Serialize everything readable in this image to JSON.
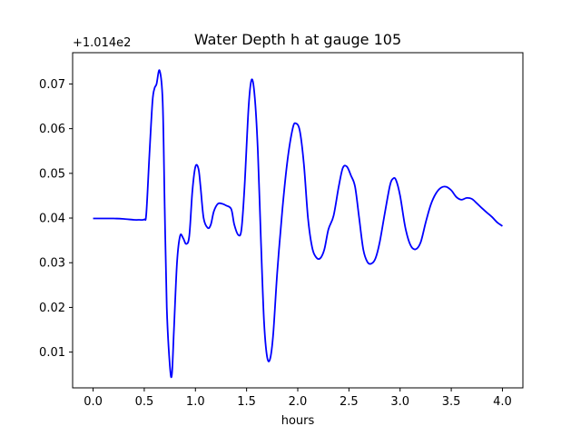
{
  "chart_data": {
    "type": "line",
    "title": "Water Depth h at gauge 105",
    "xlabel": "hours",
    "ylabel": "",
    "offset_label": "+1.014e2",
    "xlim": [
      -0.2,
      4.2
    ],
    "ylim": [
      0.002,
      0.077
    ],
    "xticks": [
      0.0,
      0.5,
      1.0,
      1.5,
      2.0,
      2.5,
      3.0,
      3.5,
      4.0
    ],
    "xtick_labels": [
      "0.0",
      "0.5",
      "1.0",
      "1.5",
      "2.0",
      "2.5",
      "3.0",
      "3.5",
      "4.0"
    ],
    "yticks": [
      0.01,
      0.02,
      0.03,
      0.04,
      0.05,
      0.06,
      0.07
    ],
    "ytick_labels": [
      "0.01",
      "0.02",
      "0.03",
      "0.04",
      "0.05",
      "0.06",
      "0.07"
    ],
    "grid": false,
    "color": "#0000ff",
    "series": [
      {
        "x": [
          0.0,
          0.1,
          0.2,
          0.3,
          0.4,
          0.45,
          0.5,
          0.52,
          0.55,
          0.58,
          0.6,
          0.62,
          0.65,
          0.68,
          0.7,
          0.72,
          0.75,
          0.77,
          0.79,
          0.82,
          0.85,
          0.88,
          0.91,
          0.94,
          0.97,
          1.0,
          1.03,
          1.05,
          1.08,
          1.12,
          1.15,
          1.18,
          1.22,
          1.26,
          1.3,
          1.35,
          1.38,
          1.42,
          1.45,
          1.48,
          1.52,
          1.55,
          1.58,
          1.61,
          1.64,
          1.67,
          1.7,
          1.73,
          1.76,
          1.8,
          1.85,
          1.9,
          1.95,
          1.98,
          2.02,
          2.06,
          2.1,
          2.14,
          2.18,
          2.22,
          2.26,
          2.3,
          2.35,
          2.4,
          2.44,
          2.48,
          2.52,
          2.56,
          2.6,
          2.64,
          2.68,
          2.72,
          2.76,
          2.8,
          2.85,
          2.9,
          2.93,
          2.96,
          3.0,
          3.05,
          3.1,
          3.15,
          3.2,
          3.25,
          3.3,
          3.35,
          3.4,
          3.45,
          3.5,
          3.55,
          3.6,
          3.65,
          3.7,
          3.75,
          3.8,
          3.85,
          3.9,
          3.95,
          4.0
        ],
        "values": [
          0.0399,
          0.0399,
          0.0399,
          0.0398,
          0.0396,
          0.0396,
          0.0397,
          0.041,
          0.054,
          0.066,
          0.069,
          0.07,
          0.073,
          0.066,
          0.042,
          0.02,
          0.007,
          0.005,
          0.015,
          0.03,
          0.036,
          0.0355,
          0.0342,
          0.036,
          0.046,
          0.0515,
          0.051,
          0.047,
          0.04,
          0.0378,
          0.0385,
          0.0415,
          0.0432,
          0.0432,
          0.0428,
          0.042,
          0.0385,
          0.0362,
          0.0375,
          0.047,
          0.065,
          0.071,
          0.067,
          0.055,
          0.035,
          0.017,
          0.009,
          0.0085,
          0.014,
          0.028,
          0.042,
          0.053,
          0.06,
          0.0612,
          0.0595,
          0.052,
          0.04,
          0.0335,
          0.0312,
          0.031,
          0.033,
          0.0375,
          0.0405,
          0.047,
          0.0512,
          0.0515,
          0.0495,
          0.047,
          0.04,
          0.033,
          0.0302,
          0.0298,
          0.031,
          0.0345,
          0.041,
          0.0472,
          0.0488,
          0.0485,
          0.045,
          0.038,
          0.034,
          0.033,
          0.0345,
          0.039,
          0.043,
          0.0455,
          0.0468,
          0.047,
          0.0462,
          0.0447,
          0.0441,
          0.0445,
          0.0443,
          0.0433,
          0.0422,
          0.0412,
          0.0402,
          0.039,
          0.0382
        ]
      }
    ]
  }
}
